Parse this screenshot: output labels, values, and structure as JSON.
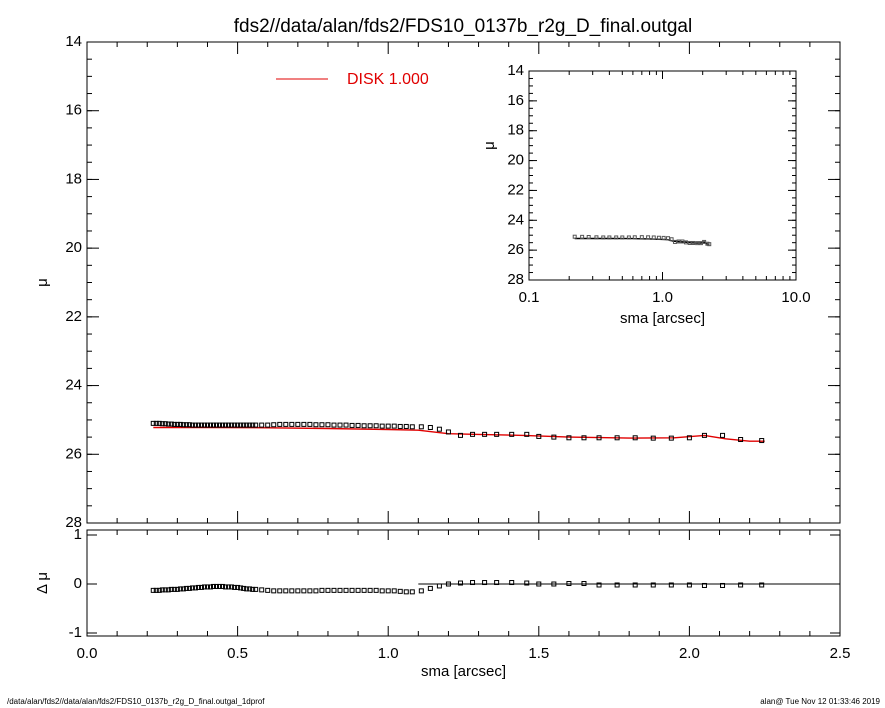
{
  "title": "fds2//data/alan/fds2/FDS10_0137b_r2g_D_final.outgal",
  "footer": {
    "left": "/data/alan/fds2//data/alan/fds2/FDS10_0137b_r2g_D_final.outgal_1dprof",
    "right": "alan@  Tue Nov 12 01:33:46 2019"
  },
  "colors": {
    "model": "#e00000",
    "data": "#000000",
    "background": "#ffffff"
  },
  "legend": {
    "label": "DISK  1.000",
    "position": "top-center"
  },
  "chart_data": [
    {
      "id": "main",
      "type": "scatter",
      "ylabel": "μ",
      "xlim": [
        0.0,
        2.5
      ],
      "ylim": [
        28,
        14
      ],
      "y_inverted": true,
      "yticks": [
        "14",
        "16",
        "18",
        "20",
        "22",
        "24",
        "26",
        "28"
      ],
      "series": [
        {
          "name": "DISK  1.000",
          "kind": "model-line",
          "x": [
            0.22,
            0.4,
            0.6,
            0.8,
            1.0,
            1.1,
            1.2,
            1.3,
            1.45,
            1.6,
            1.8,
            1.95,
            2.05,
            2.12,
            2.2,
            2.25
          ],
          "y": [
            25.22,
            25.22,
            25.23,
            25.25,
            25.28,
            25.3,
            25.4,
            25.42,
            25.45,
            25.5,
            25.53,
            25.52,
            25.45,
            25.55,
            25.62,
            25.62
          ]
        },
        {
          "name": "",
          "kind": "data-points",
          "x": [
            0.22,
            0.23,
            0.24,
            0.25,
            0.26,
            0.27,
            0.28,
            0.29,
            0.3,
            0.31,
            0.32,
            0.33,
            0.34,
            0.35,
            0.36,
            0.37,
            0.38,
            0.39,
            0.4,
            0.41,
            0.42,
            0.43,
            0.44,
            0.45,
            0.46,
            0.47,
            0.48,
            0.49,
            0.5,
            0.51,
            0.52,
            0.53,
            0.54,
            0.55,
            0.56,
            0.58,
            0.6,
            0.62,
            0.64,
            0.66,
            0.68,
            0.7,
            0.72,
            0.74,
            0.76,
            0.78,
            0.8,
            0.82,
            0.84,
            0.86,
            0.88,
            0.9,
            0.92,
            0.94,
            0.96,
            0.98,
            1.0,
            1.02,
            1.04,
            1.06,
            1.08,
            1.11,
            1.14,
            1.17,
            1.2,
            1.24,
            1.28,
            1.32,
            1.36,
            1.41,
            1.46,
            1.5,
            1.55,
            1.6,
            1.65,
            1.7,
            1.76,
            1.82,
            1.88,
            1.94,
            2.0,
            2.05,
            2.11,
            2.17,
            2.24
          ],
          "y": [
            25.1,
            25.1,
            25.1,
            25.11,
            25.11,
            25.12,
            25.12,
            25.13,
            25.13,
            25.13,
            25.14,
            25.14,
            25.14,
            25.15,
            25.15,
            25.15,
            25.15,
            25.15,
            25.15,
            25.15,
            25.15,
            25.15,
            25.15,
            25.15,
            25.15,
            25.15,
            25.15,
            25.15,
            25.15,
            25.15,
            25.15,
            25.15,
            25.15,
            25.15,
            25.15,
            25.15,
            25.15,
            25.14,
            25.13,
            25.13,
            25.13,
            25.13,
            25.13,
            25.13,
            25.14,
            25.14,
            25.14,
            25.15,
            25.15,
            25.15,
            25.16,
            25.16,
            25.17,
            25.17,
            25.17,
            25.18,
            25.18,
            25.18,
            25.19,
            25.19,
            25.2,
            25.2,
            25.22,
            25.27,
            25.35,
            25.45,
            25.42,
            25.42,
            25.42,
            25.42,
            25.42,
            25.48,
            25.5,
            25.52,
            25.52,
            25.52,
            25.52,
            25.52,
            25.53,
            25.53,
            25.52,
            25.45,
            25.45,
            25.57,
            25.6
          ]
        }
      ]
    },
    {
      "id": "residual",
      "type": "scatter",
      "xlabel": "sma [arcsec]",
      "ylabel": "Δ μ",
      "xlim": [
        0.0,
        2.5
      ],
      "ylim": [
        -1,
        1
      ],
      "xticks": [
        "0.0",
        "0.5",
        "1.0",
        "1.5",
        "2.0",
        "2.5"
      ],
      "yticks": [
        "-1",
        "0",
        "1"
      ],
      "reference_line": {
        "y": 0,
        "x": [
          1.1,
          2.5
        ]
      },
      "series": [
        {
          "name": "",
          "kind": "data-points",
          "x": [
            0.22,
            0.23,
            0.24,
            0.25,
            0.26,
            0.27,
            0.28,
            0.29,
            0.3,
            0.31,
            0.32,
            0.33,
            0.34,
            0.35,
            0.36,
            0.37,
            0.38,
            0.39,
            0.4,
            0.41,
            0.42,
            0.43,
            0.44,
            0.45,
            0.46,
            0.47,
            0.48,
            0.49,
            0.5,
            0.51,
            0.52,
            0.53,
            0.54,
            0.55,
            0.56,
            0.58,
            0.6,
            0.62,
            0.64,
            0.66,
            0.68,
            0.7,
            0.72,
            0.74,
            0.76,
            0.78,
            0.8,
            0.82,
            0.84,
            0.86,
            0.88,
            0.9,
            0.92,
            0.94,
            0.96,
            0.98,
            1.0,
            1.02,
            1.04,
            1.06,
            1.08,
            1.11,
            1.14,
            1.17,
            1.2,
            1.24,
            1.28,
            1.32,
            1.36,
            1.41,
            1.46,
            1.5,
            1.55,
            1.6,
            1.65,
            1.7,
            1.76,
            1.82,
            1.88,
            1.94,
            2.0,
            2.05,
            2.11,
            2.17,
            2.24
          ],
          "y": [
            -0.13,
            -0.13,
            -0.13,
            -0.12,
            -0.12,
            -0.12,
            -0.11,
            -0.11,
            -0.11,
            -0.1,
            -0.1,
            -0.09,
            -0.09,
            -0.08,
            -0.08,
            -0.07,
            -0.07,
            -0.06,
            -0.06,
            -0.06,
            -0.05,
            -0.05,
            -0.05,
            -0.05,
            -0.06,
            -0.06,
            -0.06,
            -0.07,
            -0.07,
            -0.08,
            -0.09,
            -0.1,
            -0.1,
            -0.11,
            -0.11,
            -0.12,
            -0.13,
            -0.14,
            -0.14,
            -0.14,
            -0.14,
            -0.14,
            -0.14,
            -0.14,
            -0.14,
            -0.13,
            -0.13,
            -0.13,
            -0.13,
            -0.13,
            -0.13,
            -0.13,
            -0.13,
            -0.13,
            -0.13,
            -0.14,
            -0.14,
            -0.14,
            -0.15,
            -0.16,
            -0.16,
            -0.14,
            -0.09,
            -0.04,
            0.0,
            0.02,
            0.03,
            0.03,
            0.03,
            0.03,
            0.02,
            0.0,
            0.0,
            0.01,
            0.01,
            -0.02,
            -0.02,
            -0.02,
            -0.02,
            -0.02,
            -0.02,
            -0.03,
            -0.03,
            -0.02,
            -0.02
          ]
        }
      ]
    },
    {
      "id": "inset",
      "type": "scatter",
      "xscale": "log",
      "xlabel": "sma [arcsec]",
      "ylabel": "μ",
      "xlim": [
        0.1,
        10.0
      ],
      "ylim": [
        28,
        14
      ],
      "y_inverted": true,
      "xticks": [
        "0.1",
        "1.0",
        "10.0"
      ],
      "yticks": [
        "14",
        "16",
        "18",
        "20",
        "22",
        "24",
        "26",
        "28"
      ],
      "series": [
        {
          "name": "",
          "kind": "model-line",
          "x": [
            0.22,
            0.4,
            0.6,
            0.8,
            1.0,
            1.1,
            1.2,
            1.3,
            1.45,
            1.6,
            1.8,
            1.95,
            2.05,
            2.12,
            2.2,
            2.25
          ],
          "y": [
            25.22,
            25.22,
            25.23,
            25.25,
            25.28,
            25.3,
            25.4,
            25.42,
            25.45,
            25.5,
            25.53,
            25.52,
            25.45,
            25.55,
            25.62,
            25.62
          ]
        },
        {
          "name": "",
          "kind": "data-points",
          "x": [
            0.22,
            0.25,
            0.28,
            0.32,
            0.36,
            0.4,
            0.45,
            0.5,
            0.56,
            0.62,
            0.7,
            0.78,
            0.86,
            0.94,
            1.02,
            1.1,
            1.17,
            1.24,
            1.32,
            1.41,
            1.5,
            1.6,
            1.7,
            1.82,
            1.94,
            2.05,
            2.17,
            2.24
          ],
          "y": [
            25.1,
            25.11,
            25.12,
            25.14,
            25.15,
            25.15,
            25.15,
            25.15,
            25.15,
            25.14,
            25.13,
            25.14,
            25.15,
            25.17,
            25.18,
            25.2,
            25.27,
            25.45,
            25.42,
            25.42,
            25.48,
            25.52,
            25.52,
            25.53,
            25.53,
            25.45,
            25.57,
            25.6
          ]
        }
      ]
    }
  ]
}
